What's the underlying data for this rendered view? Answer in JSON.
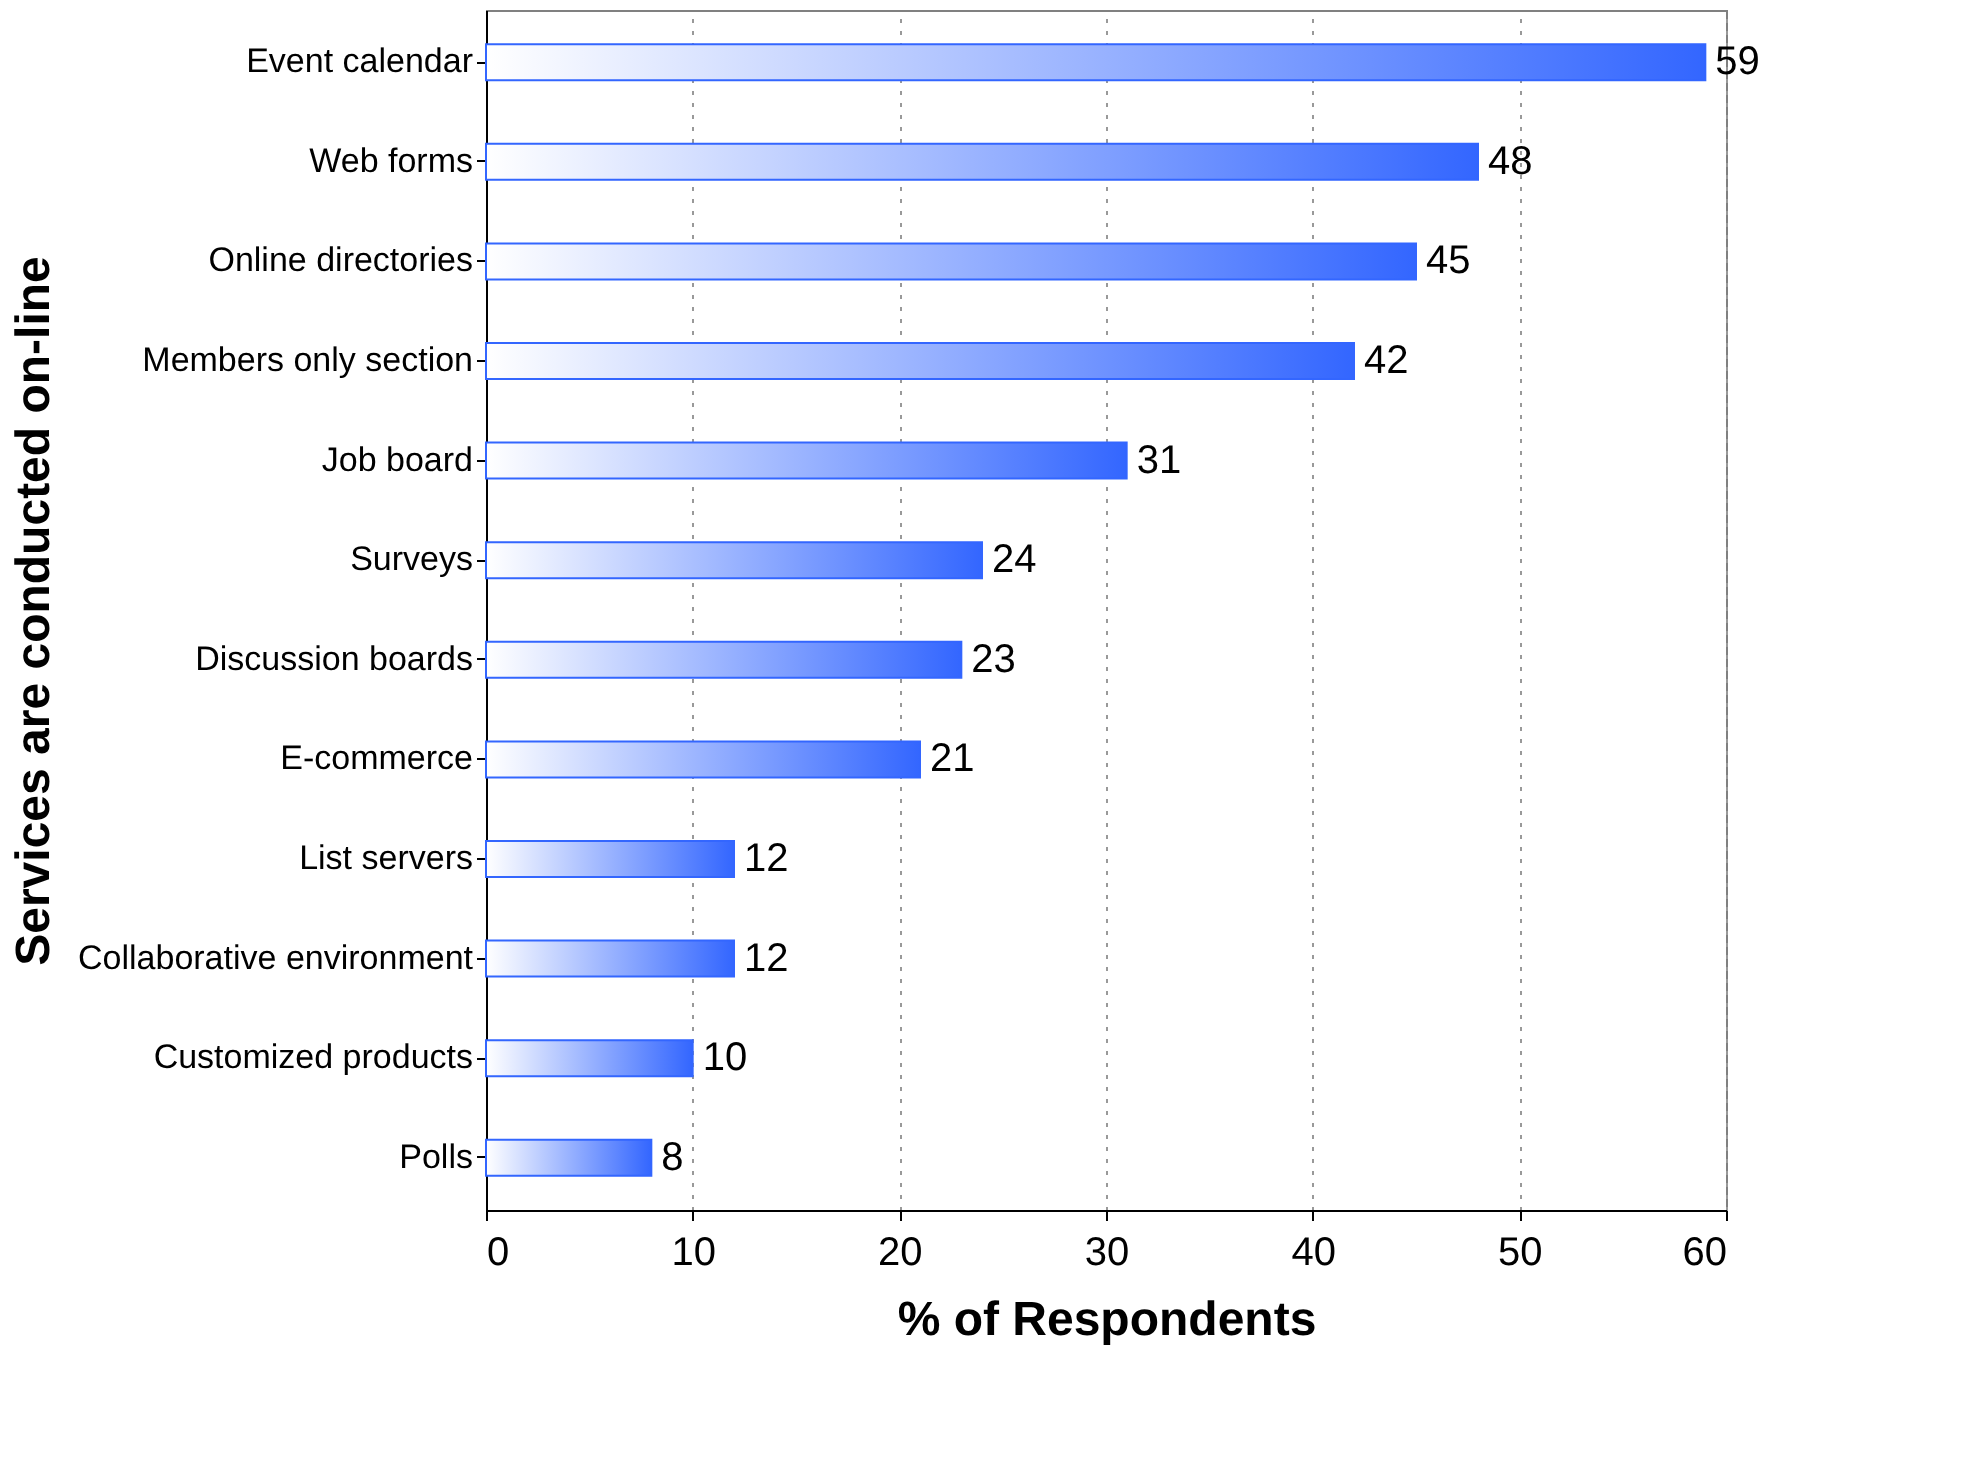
{
  "chart_data": {
    "type": "bar",
    "orientation": "horizontal",
    "xlabel": "% of Respondents",
    "ylabel": "Services are conducted on-line",
    "categories": [
      "Event calendar",
      "Web forms",
      "Online directories",
      "Members only section",
      "Job board",
      "Surveys",
      "Discussion boards",
      "E-commerce",
      "List servers",
      "Collaborative environment",
      "Customized products",
      "Polls"
    ],
    "values": [
      59,
      48,
      45,
      42,
      31,
      24,
      23,
      21,
      12,
      12,
      10,
      8
    ],
    "color": "#3366ff",
    "xlim": [
      0,
      60
    ],
    "xticks": [
      0,
      10,
      20,
      30,
      40,
      50,
      60
    ],
    "grid": "x",
    "data_labels": true
  }
}
